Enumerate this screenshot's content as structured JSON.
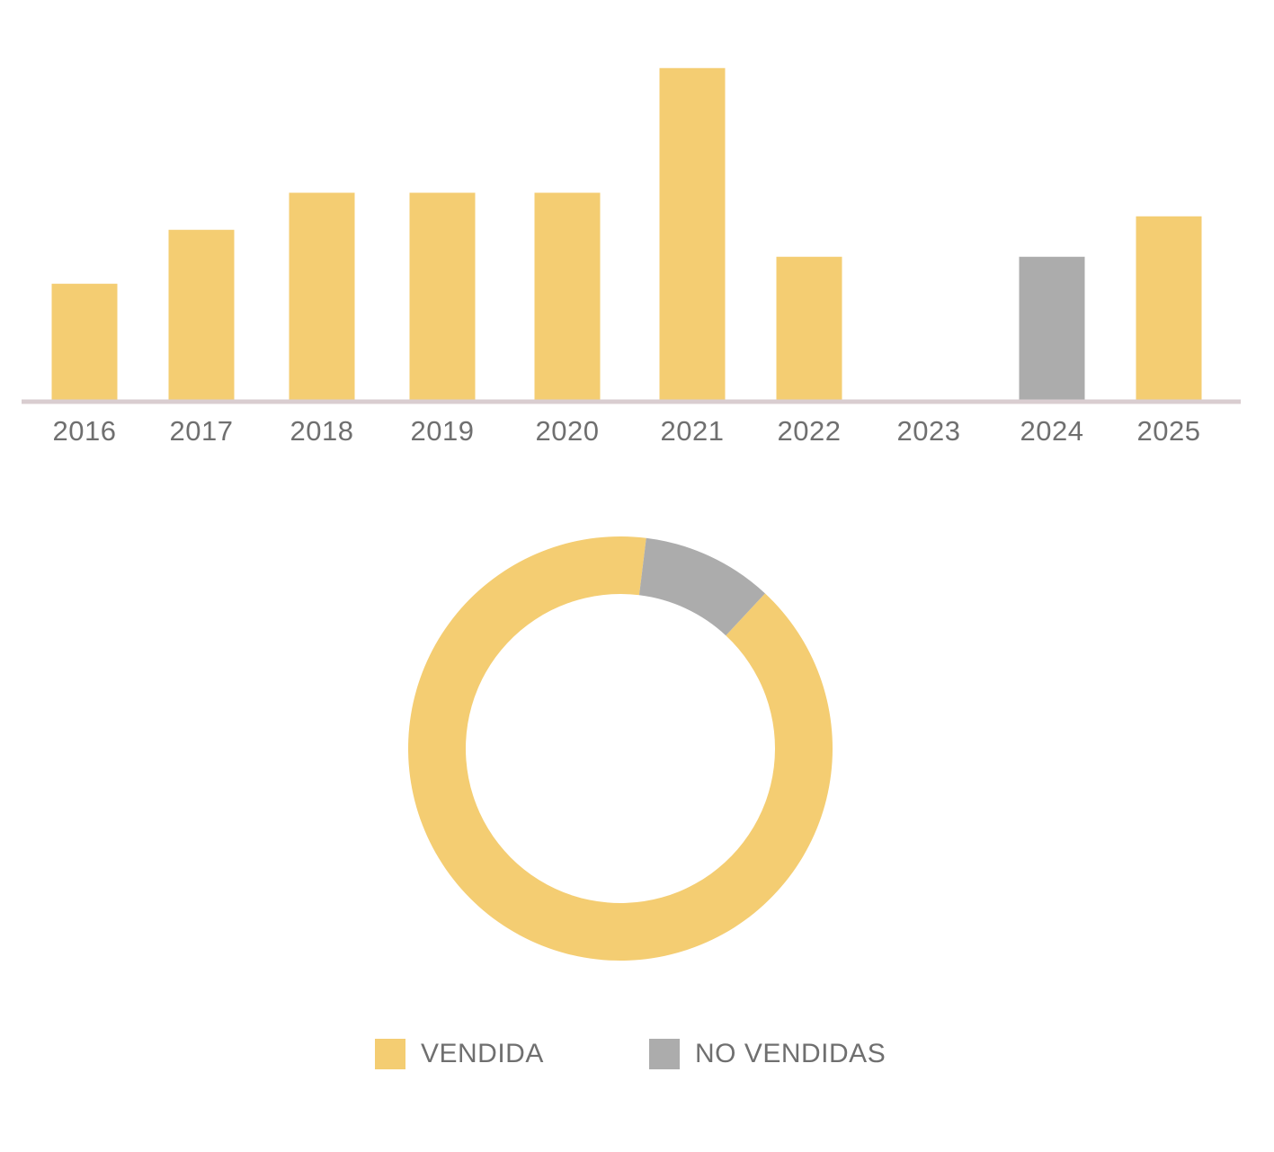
{
  "colors": {
    "sold": "#f4cd72",
    "unsold": "#acacac",
    "axis": "#d9cdd0",
    "text": "#6f6f6f"
  },
  "chart_data": [
    {
      "type": "bar",
      "categories": [
        "2016",
        "2017",
        "2018",
        "2019",
        "2020",
        "2021",
        "2022",
        "2023",
        "2024",
        "2025"
      ],
      "series": [
        {
          "name": "VENDIDA",
          "values": [
            3.5,
            5.1,
            6.2,
            6.2,
            6.2,
            9.9,
            4.3,
            0,
            0,
            5.5
          ]
        },
        {
          "name": "NO VENDIDAS",
          "values": [
            0,
            0,
            0,
            0,
            0,
            0,
            0,
            0,
            4.3,
            0
          ]
        }
      ],
      "ylim": [
        0,
        10
      ],
      "grid": false
    },
    {
      "type": "pie",
      "labels": [
        "VENDIDA",
        "NO VENDIDAS"
      ],
      "values": [
        90,
        10
      ],
      "legend": "bottom"
    }
  ],
  "legend": {
    "items": [
      {
        "label": "VENDIDA"
      },
      {
        "label": "NO VENDIDAS"
      }
    ]
  }
}
